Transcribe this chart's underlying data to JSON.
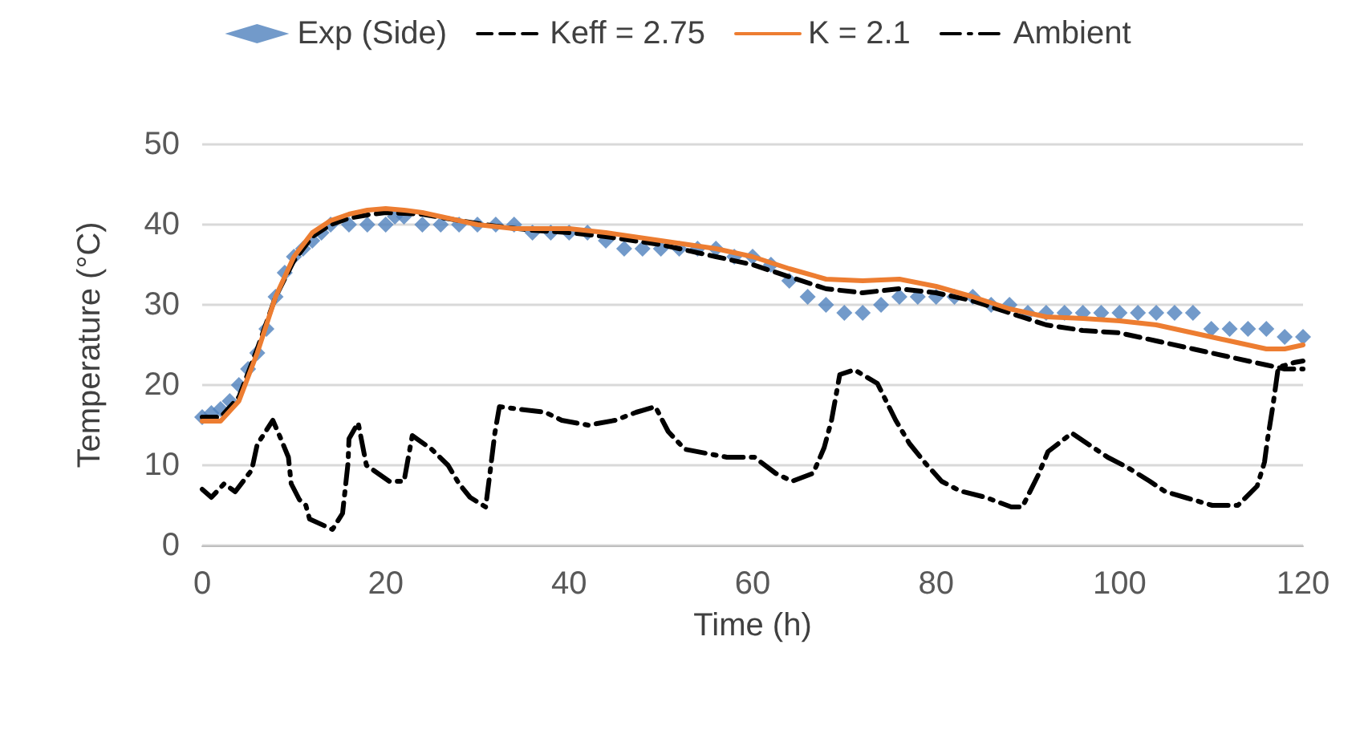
{
  "chart_data": {
    "type": "line",
    "xlabel": "Time (h)",
    "ylabel": "Temperature (°C)",
    "xlim": [
      0,
      120
    ],
    "xticks": [
      0,
      20,
      40,
      60,
      80,
      100,
      120
    ],
    "ylim": [
      0,
      50
    ],
    "yticks": [
      0,
      10,
      20,
      30,
      40,
      50
    ],
    "grid": "y",
    "legend": "top",
    "series": [
      {
        "name": "Exp (Side)",
        "type": "scatter",
        "marker": "diamond",
        "color": "#4f81bd",
        "x": [
          0,
          1,
          2,
          3,
          4,
          5,
          6,
          7,
          8,
          9,
          10,
          11,
          12,
          13,
          14,
          16,
          18,
          20,
          21,
          22,
          24,
          26,
          28,
          30,
          32,
          34,
          36,
          38,
          40,
          42,
          44,
          46,
          48,
          50,
          52,
          54,
          56,
          58,
          60,
          62,
          64,
          66,
          68,
          70,
          72,
          74,
          76,
          78,
          80,
          82,
          84,
          86,
          88,
          90,
          92,
          94,
          96,
          98,
          100,
          102,
          104,
          106,
          108,
          110,
          112,
          114,
          116,
          118,
          120
        ],
        "values": [
          16,
          16.5,
          17,
          18,
          20,
          22,
          24,
          27,
          31,
          34,
          36,
          37,
          38,
          39,
          40,
          40,
          40,
          40,
          41,
          41,
          40,
          40,
          40,
          40,
          40,
          40,
          39,
          39,
          39,
          39,
          38,
          37,
          37,
          37,
          37,
          37,
          37,
          36,
          36,
          35,
          33,
          31,
          30,
          29,
          29,
          30,
          31,
          31,
          31,
          31,
          31,
          30,
          30,
          29,
          29,
          29,
          29,
          29,
          29,
          29,
          29,
          29,
          29,
          27,
          27,
          27,
          27,
          26,
          26
        ]
      },
      {
        "name": "Keff = 2.75",
        "line_style": "dashed",
        "marker": "none",
        "color": "#000000",
        "x": [
          0,
          2,
          4,
          6,
          8,
          10,
          12,
          14,
          16,
          18,
          20,
          24,
          28,
          32,
          36,
          40,
          44,
          50,
          56,
          60,
          64,
          68,
          72,
          76,
          80,
          84,
          88,
          92,
          96,
          100,
          104,
          108,
          112,
          116,
          118,
          120
        ],
        "values": [
          16,
          16,
          18.5,
          24.5,
          31,
          35.5,
          38.5,
          40,
          40.8,
          41.2,
          41.5,
          41.3,
          40.5,
          39.8,
          39.3,
          39,
          38.5,
          37.5,
          36,
          35,
          33.5,
          32,
          31.5,
          32,
          31.5,
          30.5,
          29,
          27.5,
          26.8,
          26.5,
          25.5,
          24.5,
          23.5,
          22.5,
          22,
          22
        ]
      },
      {
        "name": "K = 2.1",
        "line_style": "solid",
        "marker": "none",
        "color": "#ed7d31",
        "x": [
          0,
          2,
          4,
          6,
          8,
          10,
          12,
          14,
          16,
          18,
          20,
          22,
          24,
          26,
          28,
          30,
          34,
          40,
          44,
          50,
          56,
          60,
          64,
          68,
          72,
          76,
          80,
          84,
          88,
          92,
          96,
          100,
          104,
          108,
          112,
          116,
          118,
          120
        ],
        "values": [
          15.5,
          15.5,
          18,
          24,
          31,
          36,
          39,
          40.5,
          41.3,
          41.8,
          42,
          41.8,
          41.5,
          41,
          40.5,
          40,
          39.5,
          39.5,
          39,
          38,
          37,
          36,
          34.5,
          33.2,
          33,
          33.2,
          32.3,
          31,
          29.5,
          28.5,
          28.3,
          28,
          27.5,
          26.5,
          25.5,
          24.5,
          24.5,
          25
        ]
      },
      {
        "name": "Ambient",
        "line_style": "dashdot",
        "marker": "none",
        "color": "#000000",
        "x": [
          0,
          1,
          2.4,
          3.6,
          5.4,
          6,
          7.7,
          8.5,
          9.4,
          9.7,
          10.6,
          11.3,
          11.7,
          14.2,
          15.3,
          15.9,
          16,
          17,
          17.9,
          20.4,
          22,
          22.9,
          25,
          26.8,
          28,
          29.2,
          30.9,
          31.3,
          31.9,
          32.4,
          34.5,
          37.4,
          39.2,
          42.1,
          45,
          47.3,
          49.4,
          50.8,
          52.6,
          57.2,
          60.2,
          62.5,
          64.3,
          66.6,
          67.8,
          68.6,
          69.5,
          71.1,
          73.6,
          75.6,
          77.1,
          78.8,
          80.6,
          82.6,
          85.4,
          88.2,
          89.4,
          91.1,
          92.2,
          94.8,
          98.7,
          100.9,
          103.3,
          105,
          107.4,
          110.1,
          112.9,
          115,
          115.8,
          116.1,
          116.7,
          117.3,
          119,
          120
        ],
        "values": [
          7,
          6,
          7.7,
          6.7,
          9.4,
          12.6,
          15.6,
          13.5,
          11,
          7.7,
          5.7,
          5,
          3.3,
          2,
          4,
          10.3,
          13.3,
          15.3,
          10,
          8,
          8,
          13.7,
          12,
          10,
          7.7,
          6,
          4.8,
          8.4,
          14,
          17.3,
          17,
          16.6,
          15.6,
          15,
          15.6,
          16.6,
          17.3,
          14.2,
          12,
          11,
          11,
          9,
          8,
          9,
          12.2,
          15.6,
          21.3,
          21.9,
          20.2,
          15.6,
          12.7,
          10.3,
          8,
          6.8,
          6,
          4.8,
          4.8,
          8.7,
          11.7,
          14,
          11,
          9.7,
          8,
          6.7,
          5.9,
          5,
          5,
          7.4,
          10.4,
          13,
          17.3,
          22.2,
          22.8,
          23
        ]
      }
    ]
  }
}
